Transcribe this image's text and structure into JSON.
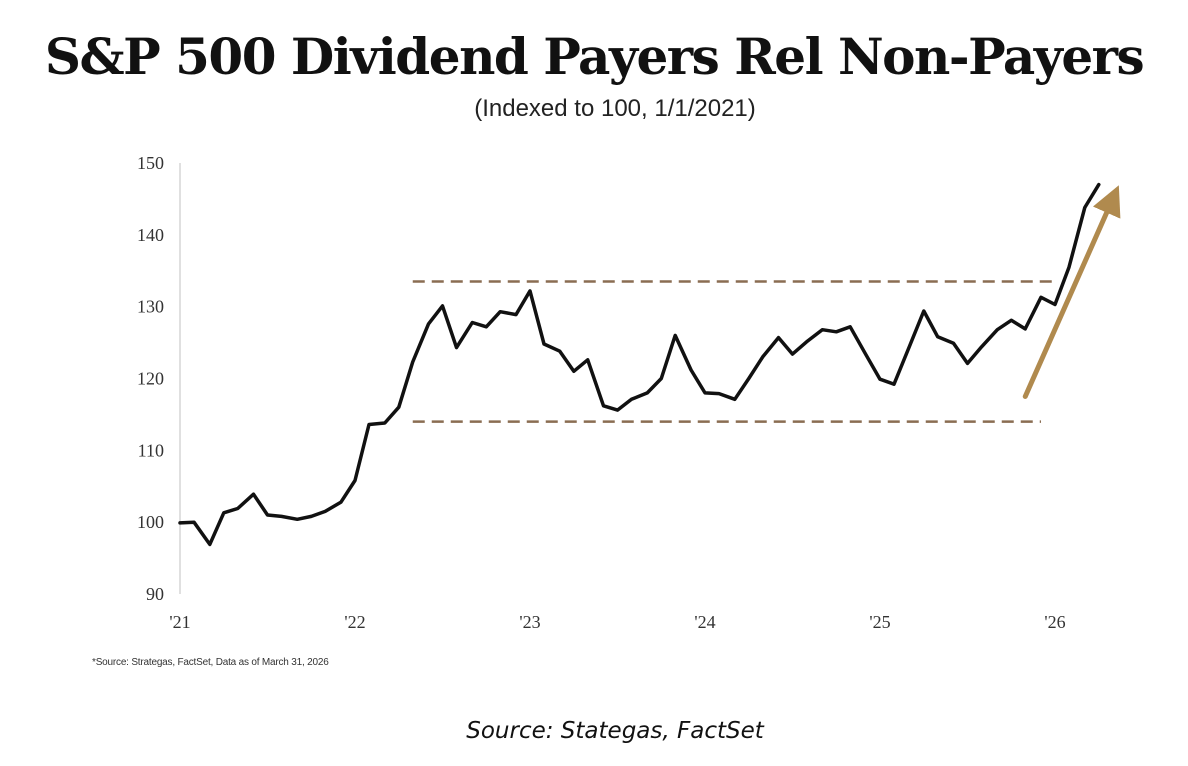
{
  "chart_data": {
    "type": "line",
    "title": "S&P 500 Dividend Payers Rel Non-Payers",
    "subtitle": "(Indexed to 100, 1/1/2021)",
    "xlabel": "",
    "ylabel": "",
    "ylim": [
      90,
      150
    ],
    "yticks": [
      150,
      140,
      130,
      120,
      110,
      100,
      90
    ],
    "xticks": [
      {
        "value": 2021,
        "label": "'21"
      },
      {
        "value": 2022,
        "label": "'22"
      },
      {
        "value": 2023,
        "label": "'23"
      },
      {
        "value": 2024,
        "label": "'24"
      },
      {
        "value": 2025,
        "label": "'25"
      },
      {
        "value": 2026,
        "label": "'26"
      }
    ],
    "xlim": [
      2021,
      2026.35
    ],
    "grid": false,
    "series": [
      {
        "name": "",
        "color": "#111111",
        "points": [
          [
            2021.0,
            99.9
          ],
          [
            2021.08,
            100.0
          ],
          [
            2021.17,
            96.9
          ],
          [
            2021.25,
            101.3
          ],
          [
            2021.33,
            101.9
          ],
          [
            2021.42,
            103.9
          ],
          [
            2021.5,
            101.0
          ],
          [
            2021.58,
            100.8
          ],
          [
            2021.67,
            100.4
          ],
          [
            2021.75,
            100.8
          ],
          [
            2021.83,
            101.5
          ],
          [
            2021.92,
            102.8
          ],
          [
            2022.0,
            105.8
          ],
          [
            2022.08,
            113.6
          ],
          [
            2022.17,
            113.8
          ],
          [
            2022.25,
            116.0
          ],
          [
            2022.33,
            122.3
          ],
          [
            2022.42,
            127.6
          ],
          [
            2022.5,
            130.1
          ],
          [
            2022.58,
            124.3
          ],
          [
            2022.67,
            127.8
          ],
          [
            2022.75,
            127.2
          ],
          [
            2022.83,
            129.3
          ],
          [
            2022.92,
            128.9
          ],
          [
            2023.0,
            132.2
          ],
          [
            2023.08,
            124.8
          ],
          [
            2023.17,
            123.8
          ],
          [
            2023.25,
            121.0
          ],
          [
            2023.33,
            122.6
          ],
          [
            2023.42,
            116.2
          ],
          [
            2023.5,
            115.6
          ],
          [
            2023.58,
            117.1
          ],
          [
            2023.67,
            118.0
          ],
          [
            2023.75,
            120.0
          ],
          [
            2023.83,
            126.0
          ],
          [
            2023.92,
            121.2
          ],
          [
            2024.0,
            118.0
          ],
          [
            2024.08,
            117.9
          ],
          [
            2024.17,
            117.1
          ],
          [
            2024.25,
            120.0
          ],
          [
            2024.33,
            123.0
          ],
          [
            2024.42,
            125.7
          ],
          [
            2024.5,
            123.4
          ],
          [
            2024.58,
            125.1
          ],
          [
            2024.67,
            126.8
          ],
          [
            2024.75,
            126.5
          ],
          [
            2024.83,
            127.2
          ],
          [
            2024.92,
            123.3
          ],
          [
            2025.0,
            119.9
          ],
          [
            2025.08,
            119.2
          ],
          [
            2025.17,
            124.6
          ],
          [
            2025.25,
            129.4
          ],
          [
            2025.33,
            125.8
          ],
          [
            2025.42,
            124.9
          ],
          [
            2025.5,
            122.1
          ],
          [
            2025.58,
            124.4
          ],
          [
            2025.67,
            126.8
          ],
          [
            2025.75,
            128.1
          ],
          [
            2025.83,
            126.9
          ],
          [
            2025.92,
            131.3
          ],
          [
            2026.0,
            130.3
          ],
          [
            2026.08,
            135.5
          ],
          [
            2026.17,
            143.8
          ],
          [
            2026.25,
            147.0
          ]
        ]
      }
    ],
    "annotations": [
      {
        "kind": "dashed-line",
        "color": "#8a6d52",
        "y": 133.5,
        "x": [
          2022.33,
          2026.0
        ]
      },
      {
        "kind": "dashed-line",
        "color": "#8a6d52",
        "y": 114.0,
        "x": [
          2022.33,
          2025.92
        ]
      },
      {
        "kind": "arrow",
        "color": "#b08a4e",
        "from": [
          2025.83,
          117.5
        ],
        "to": [
          2026.33,
          145.0
        ]
      }
    ],
    "footnote": "*Source: Strategas, FactSet, Data as of March 31, 2026"
  },
  "page": {
    "source": "Source: Stategas, FactSet"
  }
}
